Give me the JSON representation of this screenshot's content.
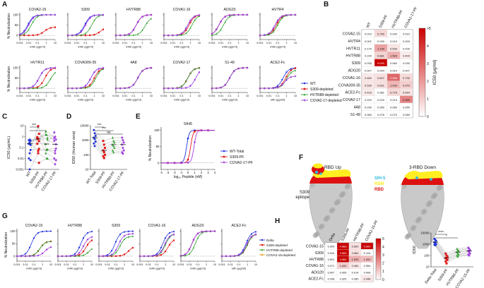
{
  "colors": {
    "blue": "#2233dd",
    "red": "#e01818",
    "green": "#2aa02a",
    "purple": "#a040e0",
    "axis": "#222222",
    "dash": "#888888",
    "heat_low": "#ffffff",
    "heat_high": "#cc0000",
    "sih5": "#33bbdd",
    "rbm": "#ffee22",
    "rbd": "#dd1111",
    "protein": "#c9c9c9",
    "protein_dark": "#a8a8a8"
  },
  "panel_letters": [
    "A",
    "B",
    "C",
    "D",
    "E",
    "F",
    "G",
    "H",
    "I"
  ],
  "panel_a": {
    "y_label": "% Neutralization",
    "x_label": "mAb (μg/ml)",
    "x_label_ace": "mAb (μg/ml)",
    "x_ticks": [
      "0.001",
      "0.01",
      "0.1",
      "1",
      "10"
    ],
    "y_ticks": [
      "0",
      "50",
      "100"
    ],
    "legend": [
      "WT",
      "S309-depleted",
      "HVTR88-depleted",
      "COVA2-17-depleted"
    ],
    "plots": [
      {
        "title": "COVA2-15",
        "ic50": [
          0.008,
          0.6,
          0.02,
          0.01
        ],
        "top": [
          100,
          40,
          100,
          100
        ]
      },
      {
        "title": "S309",
        "ic50": [
          0.08,
          5,
          0.5,
          0.1
        ],
        "top": [
          100,
          40,
          100,
          100
        ]
      },
      {
        "title": "HVTR88",
        "ic50": [
          0.2,
          0.2,
          2,
          0.2
        ],
        "top": [
          100,
          100,
          90,
          100
        ]
      },
      {
        "title": "COVA1-16",
        "ic50": [
          0.5,
          0.7,
          1.5,
          0.5
        ],
        "top": [
          100,
          100,
          100,
          100
        ]
      },
      {
        "title": "ADG20",
        "ic50": [
          0.006,
          0.006,
          0.02,
          0.006
        ],
        "top": [
          100,
          100,
          100,
          100
        ]
      },
      {
        "title": "HVTR4",
        "ic50": [
          0.05,
          0.07,
          0.1,
          0.05
        ],
        "top": [
          100,
          100,
          100,
          100
        ]
      },
      {
        "title": "HVTR11",
        "ic50": [
          0.15,
          0.7,
          3,
          0.15
        ],
        "top": [
          100,
          100,
          90,
          100
        ]
      },
      {
        "title": "COVA309-35",
        "ic50": [
          0.4,
          1,
          1.5,
          0.4
        ],
        "top": [
          100,
          100,
          100,
          100
        ]
      },
      {
        "title": "4A8",
        "ic50": [
          0.3,
          0.3,
          0.3,
          0.3
        ],
        "top": [
          100,
          100,
          100,
          100
        ]
      },
      {
        "title": "COVA2-17",
        "ic50": [
          0.5,
          0.5,
          0.5,
          4
        ],
        "top": [
          100,
          100,
          100,
          100
        ]
      },
      {
        "title": "S1-49",
        "ic50": [
          0.1,
          0.1,
          0.1,
          0.1
        ],
        "top": [
          100,
          100,
          100,
          100
        ]
      },
      {
        "title": "ACE2-Fc",
        "ic50": [
          0.4,
          0.8,
          1,
          0.6
        ],
        "top": [
          100,
          100,
          90,
          60
        ]
      }
    ]
  },
  "panel_b": {
    "cols": [
      "WT",
      "S309-PF",
      "HVTR88-PF",
      "COVA2-17-PF"
    ],
    "rows": [
      "COVA2-15",
      "HVTR4",
      "HVTR11",
      "HVTR88",
      "S309",
      "ADG20",
      "COVA1-16",
      "COVA309-35",
      "ACE2-Fc",
      "COVA2-17",
      "4A8",
      "S1-49"
    ],
    "values": [
      [
        "0.010",
        "0.750",
        "0.030",
        "0.010"
      ],
      [
        "0.001",
        "0.030",
        "0.010",
        "0.003"
      ],
      [
        "0.170",
        "1.790",
        "0.530",
        "0.200"
      ],
      [
        "0.220",
        "0.881",
        "1.560",
        "0.400"
      ],
      [
        "0.030",
        "9.000",
        "0.060",
        "0.030"
      ],
      [
        "0.007",
        "0.004",
        "0.010",
        "0.007"
      ],
      [
        "0.460",
        "0.607",
        "2.956",
        "0.730"
      ],
      [
        "0.530",
        "0.631",
        "1.430",
        "0.970"
      ],
      [
        "0.416",
        "0.381",
        "0.775",
        "0.544"
      ],
      [
        "0.220",
        "0.220",
        "0.210",
        "2.390"
      ],
      [
        "0.290",
        "0.050",
        "0.060",
        "0.050"
      ],
      [
        "0.060",
        "0.076",
        "0.070",
        "0.080"
      ]
    ],
    "scale_ticks": [
      ">5",
      "4",
      "3",
      "2",
      "1",
      "0"
    ],
    "scale_label": "IC50 (μg/ml)"
  },
  "panel_c": {
    "y_label": "IC50 (μg/mL)",
    "y_ticks": [
      "10",
      "1",
      "0.1",
      "0.01",
      "0.001"
    ],
    "cats": [
      "WT",
      "S309-PF",
      "HVTR88-PF",
      "COVA2-17-PF"
    ],
    "sig": [
      "***",
      "*"
    ]
  },
  "panel_d": {
    "y_label": "ID50 (Human sera)",
    "y_ticks": [
      "10000",
      "1000",
      "100",
      "10"
    ],
    "cats": [
      "WT-Total",
      "S309-PF",
      "HVTR88-PF",
      "COVA2-17-PF"
    ],
    "sig": [
      "***",
      "***",
      "ns"
    ]
  },
  "panel_e": {
    "title": "SIH5",
    "y_label": "% Neutralization",
    "x_label": "log₁₀ Peptide (nM)",
    "x_ticks": [
      "-4",
      "-3",
      "-2",
      "-1",
      "0",
      "1",
      "2",
      "3",
      "4"
    ],
    "y_ticks": [
      "0",
      "50",
      "100"
    ],
    "legend": [
      "WT-Total",
      "S309-PF",
      "COVA2-17-PF"
    ],
    "ic50": [
      -0.2,
      0.4,
      0.9
    ]
  },
  "panel_f": {
    "label_up": "1-RBD Up",
    "label_down": "3-RBD Down",
    "epitope": "S309\nepitope",
    "legend": [
      "SIH-5",
      "RBM",
      "RBD"
    ]
  },
  "panel_g": {
    "y_label": "% Neutralization",
    "x_label": "mAb (μg/ml)",
    "x_ticks": [
      "0.001",
      "0.01",
      "0.1",
      "1",
      "10"
    ],
    "y_ticks": [
      "0",
      "50",
      "100"
    ],
    "legend": [
      "Delta",
      "S309-depleted",
      "HVTR88-depleted",
      "COVA2-15-depleted"
    ],
    "plots": [
      {
        "title": "COVA2-15",
        "ic50": [
          0.05,
          0.5,
          0.5,
          2
        ],
        "top": [
          100,
          60,
          60,
          40
        ]
      },
      {
        "title": "HVTR88",
        "ic50": [
          0.5,
          2,
          5,
          1
        ],
        "top": [
          100,
          70,
          40,
          80
        ]
      },
      {
        "title": "S309",
        "ic50": [
          0.08,
          3,
          0.3,
          0.2
        ],
        "top": [
          100,
          40,
          80,
          90
        ]
      },
      {
        "title": "COVA1-16",
        "ic50": [
          0.5,
          2,
          1,
          0.8
        ],
        "top": [
          100,
          70,
          90,
          90
        ]
      },
      {
        "title": "ADG20",
        "ic50": [
          0.02,
          0.02,
          0.05,
          0.02
        ],
        "top": [
          100,
          100,
          100,
          100
        ]
      },
      {
        "title": "ACE2-Fc",
        "ic50": [
          0.7,
          1,
          1,
          0.8
        ],
        "top": [
          100,
          90,
          90,
          90
        ]
      }
    ]
  },
  "panel_h": {
    "cols": [
      "Delta",
      "S309-PF",
      "HVTR88-PF",
      "COVA2-15-PF"
    ],
    "rows": [
      "COVA2-15",
      "S309",
      "HVTR88",
      "COVA1-16",
      "ADG20",
      "ACE2-Fc"
    ],
    "values": [
      [
        "0.009",
        "4.983",
        "0.600",
        "5.500"
      ],
      [
        "0.024",
        "4.983",
        "0.560",
        "0.104"
      ],
      [
        "0.001",
        "4.983",
        "1.530",
        "1.300"
      ],
      [
        "0.071",
        "1.000",
        "0.450",
        "0.354"
      ],
      [
        "0.007",
        "0.005",
        "0.014",
        "0.008"
      ],
      [
        "0.298",
        "0.325",
        "0.285",
        "0.448"
      ]
    ],
    "scale_ticks": [
      "5",
      "4",
      "3",
      "2",
      "1",
      "0"
    ]
  },
  "panel_i": {
    "y_label": "ID50",
    "y_ticks": [
      "10000",
      "1000",
      "100",
      "10"
    ],
    "cats": [
      "Delta-Total",
      "S309-PF",
      "HVTR88-PF",
      "COVA2-15-PF"
    ],
    "sig": [
      "****",
      "*"
    ]
  },
  "chart_data": [
    {
      "type": "line",
      "title": "Panel A neutralization (WT and depleted sera)",
      "xlabel": "mAb (μg/ml)",
      "ylabel": "% Neutralization",
      "ylim": [
        -20,
        110
      ],
      "xscale": "log",
      "xlim": [
        0.001,
        10
      ],
      "series": [
        "WT",
        "S309-depleted",
        "HVTR88-depleted",
        "COVA2-17-depleted"
      ]
    },
    {
      "type": "heatmap",
      "title": "Panel B IC50 (μg/ml)"
    },
    {
      "type": "scatter",
      "title": "Panel C IC50",
      "ylabel": "IC50 (μg/mL)",
      "categories": [
        "WT",
        "S309-PF",
        "HVTR88-PF",
        "COVA2-17-PF"
      ],
      "values": [
        [
          0.01,
          0.001,
          0.17,
          0.22,
          0.03,
          0.007,
          0.46,
          0.53,
          0.416,
          0.22,
          0.29,
          0.06
        ],
        [
          0.75,
          0.03,
          1.79,
          0.881,
          9,
          0.004,
          0.607,
          0.631,
          0.381,
          0.22,
          0.05,
          0.076
        ],
        [
          0.03,
          0.01,
          0.53,
          1.56,
          0.06,
          0.01,
          2.956,
          1.43,
          0.775,
          0.21,
          0.06,
          0.07
        ],
        [
          0.01,
          0.003,
          0.2,
          0.4,
          0.03,
          0.007,
          0.73,
          0.97,
          0.544,
          2.39,
          0.05,
          0.08
        ]
      ]
    },
    {
      "type": "scatter",
      "title": "Panel D ID50 (Human sera)",
      "ylabel": "ID50 (Human sera)",
      "categories": [
        "WT-Total",
        "S309-PF",
        "HVTR88-PF",
        "COVA2-17-PF"
      ],
      "values": [
        [
          5000,
          3000,
          2000,
          1500,
          1200,
          800,
          600,
          400
        ],
        [
          900,
          500,
          300,
          200,
          150,
          100,
          80,
          60
        ],
        [
          1500,
          900,
          700,
          500,
          400,
          300,
          200,
          150
        ],
        [
          1500,
          1000,
          700,
          500,
          300,
          200,
          150,
          120
        ]
      ]
    },
    {
      "type": "line",
      "title": "Panel E SIH5",
      "xlabel": "log₁₀ Peptide (nM)",
      "ylabel": "% Neutralization",
      "ylim": [
        -20,
        110
      ],
      "xlim": [
        -4,
        4
      ],
      "series": [
        "WT-Total",
        "S309-PF",
        "COVA2-17-PF"
      ]
    },
    {
      "type": "line",
      "title": "Panel G neutralization (Delta)",
      "xlabel": "mAb (μg/ml)",
      "ylabel": "% Neutralization",
      "ylim": [
        -20,
        110
      ],
      "xscale": "log",
      "xlim": [
        0.001,
        10
      ],
      "series": [
        "Delta",
        "S309-depleted",
        "HVTR88-depleted",
        "COVA2-15-depleted"
      ]
    },
    {
      "type": "heatmap",
      "title": "Panel H IC50 Delta"
    },
    {
      "type": "scatter",
      "title": "Panel I ID50",
      "ylabel": "ID50",
      "categories": [
        "Delta-Total",
        "S309-PF",
        "HVTR88-PF",
        "COVA2-15-PF"
      ],
      "values": [
        [
          3000,
          2500,
          2000,
          1500,
          1200,
          1000,
          900,
          800
        ],
        [
          150,
          100,
          80,
          60,
          50,
          40,
          30,
          20
        ],
        [
          400,
          300,
          250,
          200,
          150,
          120,
          100,
          80
        ],
        [
          500,
          400,
          300,
          250,
          200,
          150,
          120,
          100
        ]
      ]
    }
  ]
}
